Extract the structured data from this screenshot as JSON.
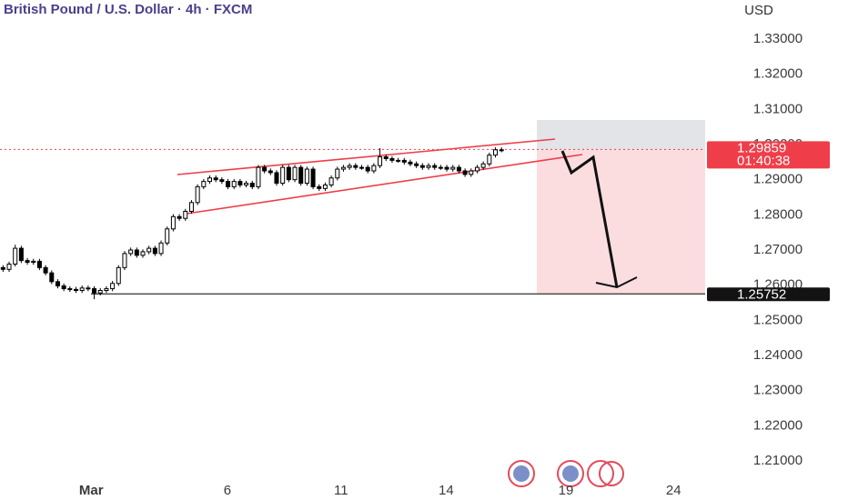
{
  "chart_data": {
    "type": "candlestick",
    "title": "British Pound / U.S. Dollar · 4h · FXCM",
    "currency": "USD",
    "up_color": "#ffffff",
    "down_color": "#000000",
    "line_color": "#ef3e4a",
    "last_price": 1.29859,
    "countdown": "01:40:38",
    "target_price": 1.25752,
    "xlim": [
      -0.5,
      115.5
    ],
    "xticks": [
      {
        "value": 14.5,
        "label": "Mar"
      },
      {
        "value": 36.9,
        "label": "6"
      },
      {
        "value": 55.6,
        "label": "11"
      },
      {
        "value": 72.9,
        "label": "14"
      },
      {
        "value": 92.6,
        "label": "19"
      },
      {
        "value": 110.3,
        "label": "24"
      }
    ],
    "ylim": [
      1.2046,
      1.3411
    ],
    "yticks": [
      {
        "value": 1.33,
        "label": "1.33000"
      },
      {
        "value": 1.32,
        "label": "1.32000"
      },
      {
        "value": 1.31,
        "label": "1.31000"
      },
      {
        "value": 1.3,
        "label": "1.30000"
      },
      {
        "value": 1.29,
        "label": "1.29000"
      },
      {
        "value": 1.28,
        "label": "1.28000"
      },
      {
        "value": 1.27,
        "label": "1.27000"
      },
      {
        "value": 1.26,
        "label": "1.26000"
      },
      {
        "value": 1.25,
        "label": "1.25000"
      },
      {
        "value": 1.24,
        "label": "1.24000"
      },
      {
        "value": 1.23,
        "label": "1.23000"
      },
      {
        "value": 1.22,
        "label": "1.22000"
      },
      {
        "value": 1.21,
        "label": "1.21000"
      }
    ],
    "open": [
      1.265,
      1.2645,
      1.266,
      1.2705,
      1.267,
      1.2665,
      1.2668,
      1.265,
      1.2635,
      1.261,
      1.2598,
      1.259,
      1.2588,
      1.2585,
      1.2592,
      1.259,
      1.2578,
      1.2585,
      1.259,
      1.2605,
      1.265,
      1.269,
      1.27,
      1.2685,
      1.2695,
      1.2705,
      1.269,
      1.272,
      1.276,
      1.2795,
      1.279,
      1.281,
      1.2835,
      1.288,
      1.2895,
      1.2905,
      1.29,
      1.2895,
      1.288,
      1.2895,
      1.2885,
      1.289,
      1.288,
      1.2935,
      1.2925,
      1.292,
      1.289,
      1.2935,
      1.29,
      1.2935,
      1.289,
      1.293,
      1.288,
      1.2875,
      1.2885,
      1.2905,
      1.293,
      1.2935,
      1.294,
      1.2935,
      1.2935,
      1.2925,
      1.294,
      1.2965,
      1.296,
      1.2955,
      1.2955,
      1.295,
      1.2945,
      1.294,
      1.2935,
      1.294,
      1.2935,
      1.2935,
      1.293,
      1.2935,
      1.2925,
      1.2915,
      1.2925,
      1.2935,
      1.2945,
      1.297,
      1.2985
    ],
    "high": [
      1.2657,
      1.2667,
      1.2715,
      1.2712,
      1.2677,
      1.2675,
      1.2675,
      1.2657,
      1.2642,
      1.2617,
      1.2605,
      1.2597,
      1.2595,
      1.2599,
      1.2599,
      1.2597,
      1.2592,
      1.2597,
      1.2612,
      1.2657,
      1.2697,
      1.2707,
      1.2707,
      1.2702,
      1.2712,
      1.2712,
      1.2727,
      1.2767,
      1.2802,
      1.2802,
      1.2817,
      1.2842,
      1.2887,
      1.2902,
      1.2912,
      1.2912,
      1.2907,
      1.2902,
      1.2902,
      1.2902,
      1.2897,
      1.2897,
      1.2942,
      1.2942,
      1.2932,
      1.2927,
      1.2942,
      1.2942,
      1.2942,
      1.2942,
      1.2937,
      1.2937,
      1.2887,
      1.2892,
      1.2912,
      1.2937,
      1.2942,
      1.2947,
      1.2947,
      1.2942,
      1.2942,
      1.2947,
      1.299,
      1.2972,
      1.2967,
      1.2962,
      1.2962,
      1.2957,
      1.2952,
      1.2947,
      1.2947,
      1.2947,
      1.2942,
      1.2942,
      1.2942,
      1.2942,
      1.2932,
      1.2932,
      1.2942,
      1.2952,
      1.2977,
      1.2992,
      1.2992
    ],
    "low": [
      1.2638,
      1.2638,
      1.2653,
      1.2663,
      1.2658,
      1.2658,
      1.2643,
      1.2628,
      1.2603,
      1.2591,
      1.2583,
      1.2581,
      1.2578,
      1.2578,
      1.2583,
      1.256,
      1.2571,
      1.2578,
      1.2583,
      1.2598,
      1.2643,
      1.2683,
      1.2678,
      1.2678,
      1.2688,
      1.2683,
      1.2683,
      1.2713,
      1.2753,
      1.2783,
      1.2783,
      1.2803,
      1.2828,
      1.2873,
      1.2888,
      1.2893,
      1.2888,
      1.2873,
      1.2873,
      1.2878,
      1.2878,
      1.2873,
      1.2873,
      1.2918,
      1.2913,
      1.2883,
      1.2883,
      1.2893,
      1.2893,
      1.2883,
      1.2883,
      1.2873,
      1.2868,
      1.2868,
      1.2878,
      1.2898,
      1.2923,
      1.2928,
      1.2928,
      1.2928,
      1.2918,
      1.2918,
      1.2933,
      1.2953,
      1.2948,
      1.2948,
      1.2943,
      1.2938,
      1.2933,
      1.2928,
      1.2928,
      1.2928,
      1.2928,
      1.2923,
      1.2923,
      1.2918,
      1.2908,
      1.2908,
      1.2918,
      1.2928,
      1.2938,
      1.2963,
      1.2978
    ],
    "close": [
      1.2645,
      1.266,
      1.2705,
      1.267,
      1.2665,
      1.2668,
      1.265,
      1.2635,
      1.261,
      1.2598,
      1.259,
      1.2588,
      1.2585,
      1.2592,
      1.259,
      1.2578,
      1.2585,
      1.259,
      1.2605,
      1.265,
      1.269,
      1.27,
      1.2685,
      1.2695,
      1.2705,
      1.269,
      1.272,
      1.276,
      1.2795,
      1.279,
      1.281,
      1.2835,
      1.288,
      1.2895,
      1.2905,
      1.29,
      1.2895,
      1.288,
      1.2895,
      1.2885,
      1.289,
      1.288,
      1.2935,
      1.2925,
      1.292,
      1.289,
      1.2935,
      1.29,
      1.2935,
      1.289,
      1.293,
      1.288,
      1.2875,
      1.2885,
      1.2905,
      1.293,
      1.2935,
      1.294,
      1.2935,
      1.2935,
      1.2925,
      1.294,
      1.2965,
      1.296,
      1.2955,
      1.2955,
      1.295,
      1.2945,
      1.294,
      1.2935,
      1.294,
      1.2935,
      1.2935,
      1.293,
      1.2935,
      1.2925,
      1.2915,
      1.2925,
      1.2935,
      1.2945,
      1.297,
      1.2985,
      1.2985
    ]
  }
}
